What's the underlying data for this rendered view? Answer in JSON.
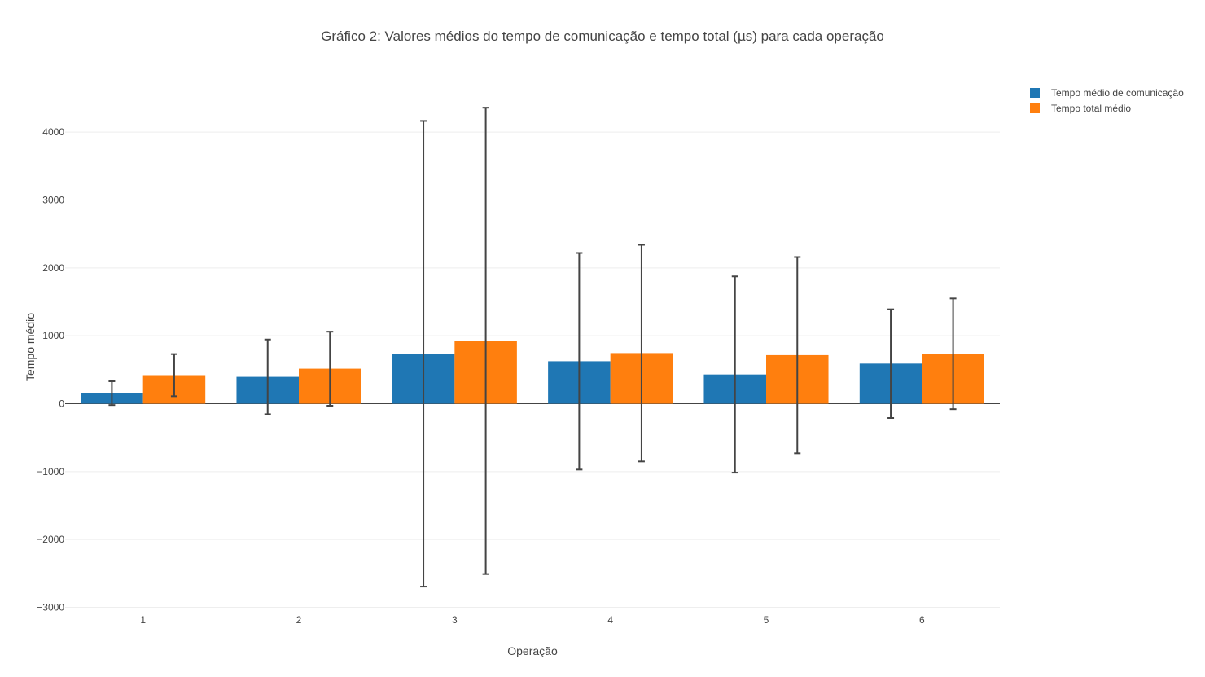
{
  "chart_data": {
    "type": "bar",
    "title": "Gráfico 2: Valores médios do tempo de comunicação e tempo total (µs) para cada operação",
    "xlabel": "Operação",
    "ylabel": "Tempo médio",
    "categories": [
      "1",
      "2",
      "3",
      "4",
      "5",
      "6"
    ],
    "ylim": [
      -3000,
      4500
    ],
    "yticks": [
      -3000,
      -2000,
      -1000,
      0,
      1000,
      2000,
      3000,
      4000
    ],
    "ytick_labels": [
      "−3000",
      "−2000",
      "−1000",
      "0",
      "1000",
      "2000",
      "3000",
      "4000"
    ],
    "grid": true,
    "legend_position": "top-right",
    "series": [
      {
        "name": "Tempo médio de comunicação",
        "color": "#1f77b4",
        "values": [
          155,
          395,
          735,
          625,
          430,
          590
        ],
        "error": [
          175,
          550,
          3430,
          1595,
          1445,
          800
        ]
      },
      {
        "name": "Tempo total médio",
        "color": "#ff7f0e",
        "values": [
          420,
          515,
          925,
          745,
          715,
          735
        ],
        "error": [
          310,
          545,
          3435,
          1595,
          1445,
          815
        ]
      }
    ]
  }
}
